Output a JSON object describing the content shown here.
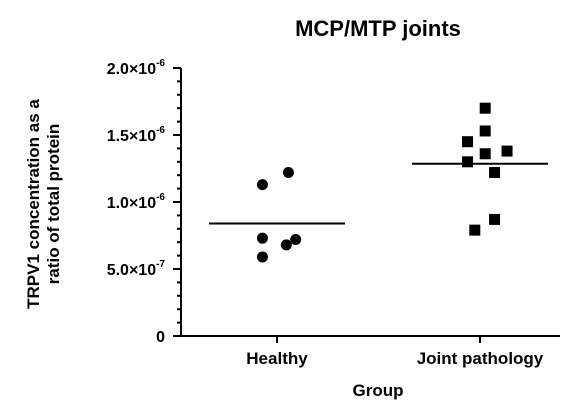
{
  "chart_data": {
    "type": "scatter",
    "title": "MCP/MTP joints",
    "xlabel": "Group",
    "ylabel_lines": [
      "TRPV1 concentration as a",
      "ratio of total protein"
    ],
    "categories": [
      "Healthy",
      "Joint pathology"
    ],
    "ylim": [
      0,
      2e-06
    ],
    "y_ticks": [
      {
        "value": 0,
        "mantissa": "0",
        "exponent": ""
      },
      {
        "value": 5e-07,
        "mantissa": "5.0×10",
        "exponent": "-7"
      },
      {
        "value": 1e-06,
        "mantissa": "1.0×10",
        "exponent": "-6"
      },
      {
        "value": 1.5e-06,
        "mantissa": "1.5×10",
        "exponent": "-6"
      },
      {
        "value": 2e-06,
        "mantissa": "2.0×10",
        "exponent": "-6"
      }
    ],
    "minor_tick_step": 1e-07,
    "grid": false,
    "series": [
      {
        "category": "Healthy",
        "marker": "circle",
        "points": [
          {
            "offset": 0.22,
            "y": 1.22e-06
          },
          {
            "offset": -0.28,
            "y": 1.13e-06
          },
          {
            "offset": -0.28,
            "y": 7.3e-07
          },
          {
            "offset": 0.36,
            "y": 7.2e-07
          },
          {
            "offset": 0.18,
            "y": 6.8e-07
          },
          {
            "offset": -0.28,
            "y": 5.9e-07
          }
        ],
        "mean": 8.4e-07
      },
      {
        "category": "Joint pathology",
        "marker": "square",
        "points": [
          {
            "offset": 0.1,
            "y": 1.7e-06
          },
          {
            "offset": 0.1,
            "y": 1.53e-06
          },
          {
            "offset": -0.24,
            "y": 1.45e-06
          },
          {
            "offset": 0.52,
            "y": 1.38e-06
          },
          {
            "offset": 0.1,
            "y": 1.36e-06
          },
          {
            "offset": -0.24,
            "y": 1.3e-06
          },
          {
            "offset": 0.28,
            "y": 1.22e-06
          },
          {
            "offset": 0.28,
            "y": 8.7e-07
          },
          {
            "offset": -0.1,
            "y": 7.9e-07
          }
        ],
        "mean": 1.285e-06
      }
    ]
  }
}
